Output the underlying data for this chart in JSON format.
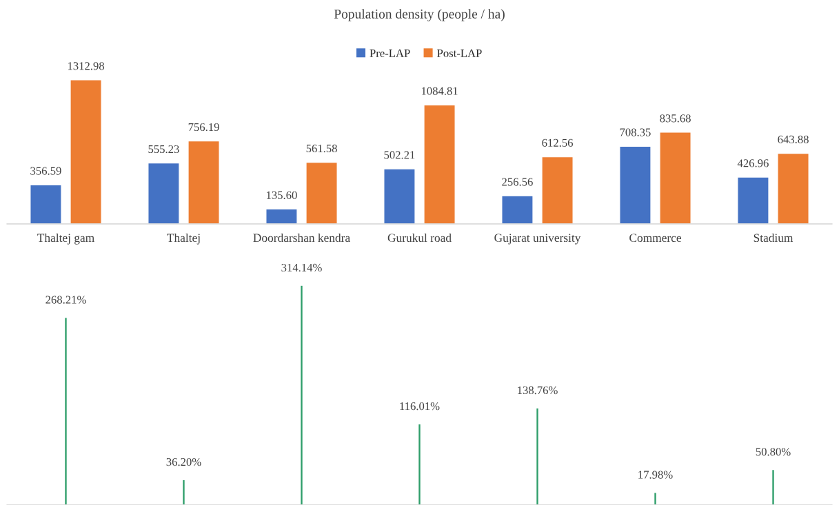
{
  "chart_data": [
    {
      "type": "bar",
      "title": "Population density (people / ha)",
      "categories": [
        "Thaltej gam",
        "Thaltej",
        "Doordarshan kendra",
        "Gurukul road",
        "Gujarat university",
        "Commerce",
        "Stadium"
      ],
      "series": [
        {
          "name": "Pre-LAP",
          "color": "#4472c4",
          "values": [
            356.59,
            555.23,
            135.6,
            502.21,
            256.56,
            708.35,
            426.96
          ],
          "value_labels": [
            "356.59",
            "555.23",
            "135.60",
            "502.21",
            "256.56",
            "708.35",
            "426.96"
          ]
        },
        {
          "name": "Post-LAP",
          "color": "#ed7d31",
          "values": [
            1312.98,
            756.19,
            561.58,
            1084.81,
            612.56,
            835.68,
            643.88
          ],
          "value_labels": [
            "1312.98",
            "756.19",
            "561.58",
            "1084.81",
            "612.56",
            "835.68",
            "643.88"
          ]
        }
      ],
      "legend": "top",
      "grid": false
    },
    {
      "type": "bar",
      "categories": [
        null,
        null,
        null,
        null,
        null,
        null,
        null
      ],
      "series": [
        {
          "color": "#2e9e6a",
          "values": [
            268.21,
            36.2,
            314.14,
            116.01,
            138.76,
            17.98,
            50.8
          ],
          "value_labels": [
            "268.21%",
            "36.20%",
            "314.14%",
            "116.01%",
            "138.76%",
            "17.98%",
            "50.80%"
          ]
        }
      ],
      "legend": false,
      "grid": false
    }
  ]
}
